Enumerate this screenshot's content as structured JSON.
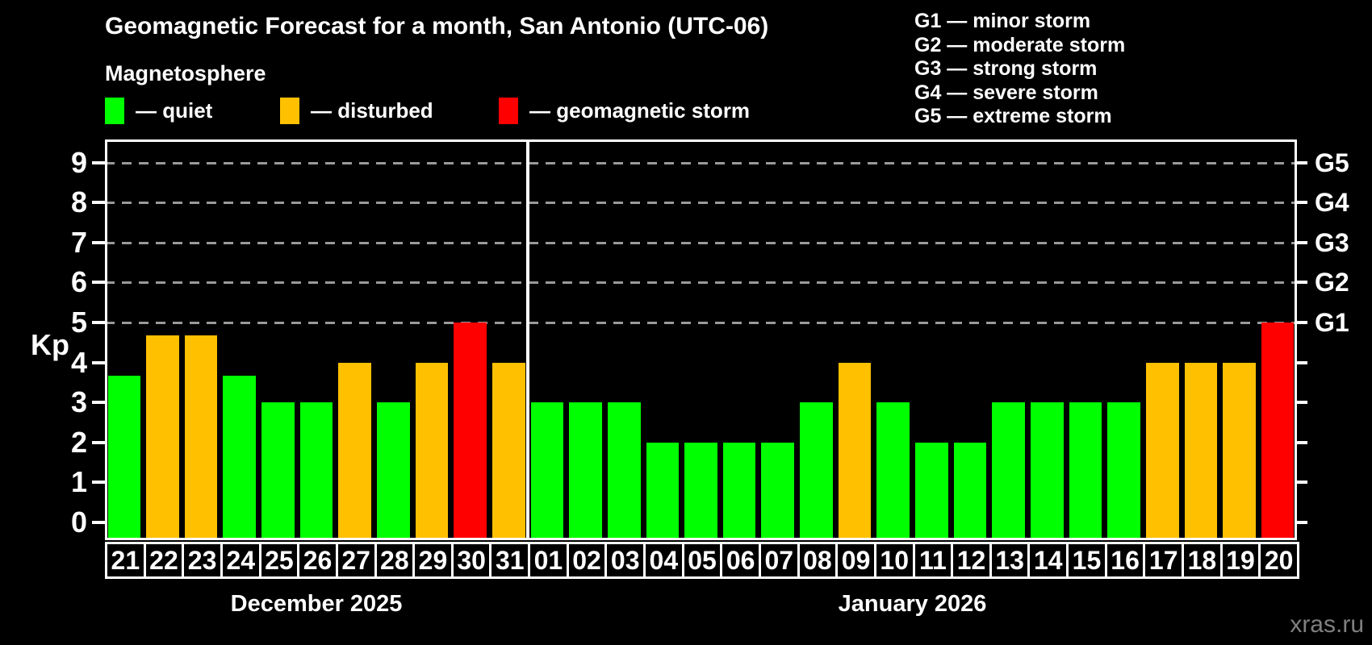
{
  "header": {
    "title": "Geomagnetic Forecast for a month, San Antonio (UTC-06)",
    "subtitle": "Magnetosphere"
  },
  "legend": {
    "items": [
      {
        "key": "quiet",
        "label": "— quiet"
      },
      {
        "key": "disturbed",
        "label": "— disturbed"
      },
      {
        "key": "storm",
        "label": "— geomagnetic storm"
      }
    ]
  },
  "g_scale_legend": [
    "G1 — minor storm",
    "G2 — moderate storm",
    "G3 — strong storm",
    "G4 — severe storm",
    "G5 — extreme storm"
  ],
  "colors": {
    "quiet": "#00ff00",
    "disturbed": "#ffc000",
    "storm": "#ff0000",
    "background": "#000000",
    "grid": "#9a9a9a",
    "text": "#ffffff",
    "watermark": "#808080"
  },
  "axes": {
    "y_left_label": "Kp",
    "y_left_ticks": [
      "0",
      "1",
      "2",
      "3",
      "4",
      "5",
      "6",
      "7",
      "8",
      "9"
    ],
    "y_right_labels": [
      {
        "kp": 5,
        "label": "G1"
      },
      {
        "kp": 6,
        "label": "G2"
      },
      {
        "kp": 7,
        "label": "G3"
      },
      {
        "kp": 8,
        "label": "G4"
      },
      {
        "kp": 9,
        "label": "G5"
      }
    ],
    "grid_levels": [
      5,
      6,
      7,
      8,
      9
    ]
  },
  "chart_data": {
    "type": "bar",
    "title": "Geomagnetic Forecast for a month, San Antonio (UTC-06)",
    "xlabel": "",
    "ylabel": "Kp",
    "ylim": [
      0,
      9.6
    ],
    "legend_position": "top-left",
    "grid": "dashed horizontal lines at Kp 5,6,7,8,9 (G1-G5 levels)",
    "categories": [
      "21",
      "22",
      "23",
      "24",
      "25",
      "26",
      "27",
      "28",
      "29",
      "30",
      "31",
      "01",
      "02",
      "03",
      "04",
      "05",
      "06",
      "07",
      "08",
      "09",
      "10",
      "11",
      "12",
      "13",
      "14",
      "15",
      "16",
      "17",
      "18",
      "19",
      "20"
    ],
    "values": [
      3.67,
      4.67,
      4.67,
      3.67,
      3,
      3,
      4,
      3,
      4,
      5,
      4,
      3,
      3,
      3,
      2,
      2,
      2,
      2,
      3,
      4,
      3,
      2,
      2,
      3,
      3,
      3,
      3,
      4,
      4,
      4,
      5
    ],
    "statuses": [
      "quiet",
      "disturbed",
      "disturbed",
      "quiet",
      "quiet",
      "quiet",
      "disturbed",
      "quiet",
      "disturbed",
      "storm",
      "disturbed",
      "quiet",
      "quiet",
      "quiet",
      "quiet",
      "quiet",
      "quiet",
      "quiet",
      "quiet",
      "disturbed",
      "quiet",
      "quiet",
      "quiet",
      "quiet",
      "quiet",
      "quiet",
      "quiet",
      "disturbed",
      "disturbed",
      "disturbed",
      "storm"
    ],
    "months": [
      {
        "label": "December 2025",
        "days": 11
      },
      {
        "label": "January 2026",
        "days": 20
      }
    ]
  },
  "watermark": "xras.ru"
}
